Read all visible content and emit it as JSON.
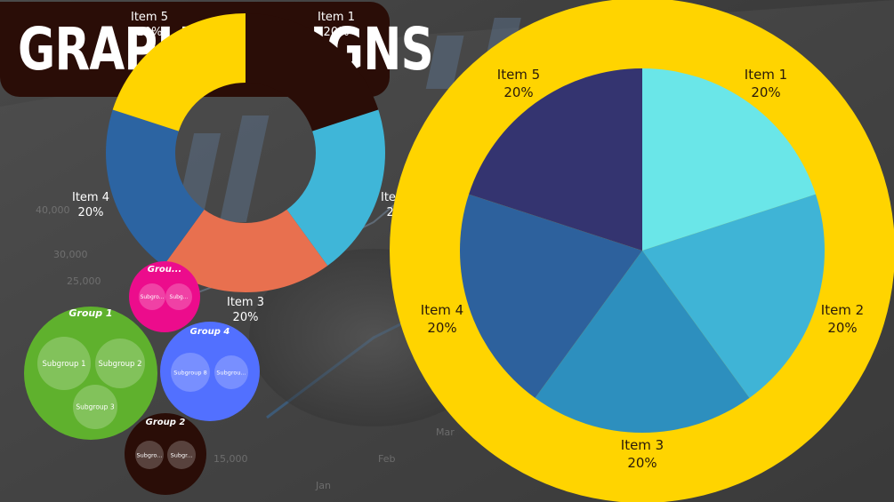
{
  "title": "GRAPH DESIGNS",
  "colors": {
    "dark": "#2a0d07",
    "yellow": "#ffd400",
    "background": "#3b3b3b"
  },
  "chart_data": [
    {
      "type": "pie",
      "variant": "donut",
      "categories": [
        "Item 1",
        "Item 2",
        "Item 3",
        "Item 4",
        "Item 5"
      ],
      "values": [
        20,
        20,
        20,
        20,
        20
      ],
      "value_labels": [
        "20%",
        "20%",
        "20%",
        "20%",
        "20%"
      ],
      "colors": [
        "#2a0d07",
        "#3fb6d8",
        "#e8704f",
        "#2c64a2",
        "#ffd400"
      ]
    },
    {
      "type": "pie",
      "categories": [
        "Item 1",
        "Item 2",
        "Item 3",
        "Item 4",
        "Item 5"
      ],
      "values": [
        20,
        20,
        20,
        20,
        20
      ],
      "value_labels": [
        "20%",
        "20%",
        "20%",
        "20%",
        "20%"
      ],
      "colors": [
        "#6ae6e8",
        "#3fb4d6",
        "#2d8fbe",
        "#2d619d",
        "#343470"
      ],
      "ring_color": "#ffd400"
    },
    {
      "type": "bubble",
      "groups": [
        {
          "name": "Group 1",
          "color": "#5fb12d",
          "subgroups": [
            "Subgroup 1",
            "Subgroup 2",
            "Subgroup 3"
          ]
        },
        {
          "name": "Group 2",
          "color": "#2a0d07",
          "subgroups": [
            "Subgro...",
            "Subgr..."
          ]
        },
        {
          "name": "Group 3",
          "display_name": "Grou...",
          "color": "#ec0c8c",
          "subgroups": [
            "Subgro...",
            "Subg..."
          ]
        },
        {
          "name": "Group 4",
          "color": "#5270ff",
          "subgroups": [
            "Subgroup 8",
            "Subgrou..."
          ]
        }
      ]
    }
  ]
}
